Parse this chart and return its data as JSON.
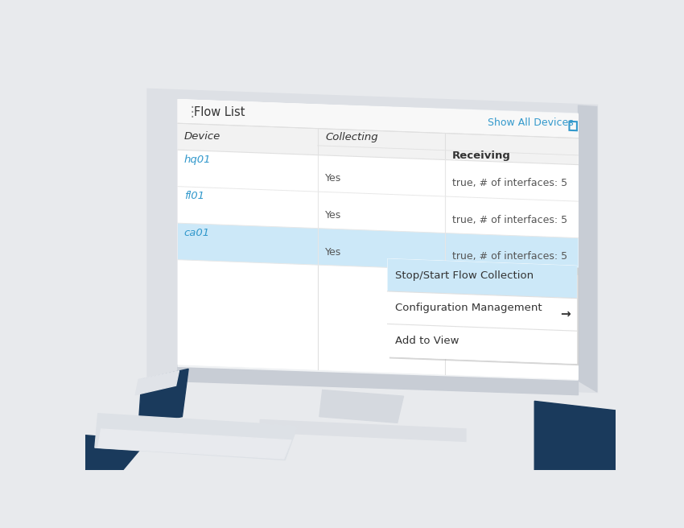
{
  "title": "Flow List",
  "show_all_devices_label": "Show All Devices",
  "col_headers": [
    "Device",
    "Collecting",
    "Receiving"
  ],
  "rows": [
    {
      "device": "hq01",
      "collecting": "Yes",
      "receiving": "true, # of interfaces: 5"
    },
    {
      "device": "fl01",
      "collecting": "Yes",
      "receiving": "true, # of interfaces: 5"
    },
    {
      "device": "ca01",
      "collecting": "Yes",
      "receiving": "true, # of interfaces: 5"
    }
  ],
  "context_menu": [
    "Stop/Start Flow Collection",
    "Configuration Management",
    "Add to View"
  ],
  "colors": {
    "background": "#e8eaed",
    "monitor_outer": "#dde0e5",
    "monitor_inner": "#f0f2f4",
    "panel_bg": "#ffffff",
    "panel_header_bg": "#f8f8f8",
    "table_header_bg": "#f2f2f2",
    "col_header_line": "#e0e0e0",
    "row_normal_bg": "#ffffff",
    "row_highlight_bg": "#cce8f8",
    "context_menu_bg": "#ffffff",
    "context_menu_highlight": "#cce8f8",
    "device_link_color": "#3399cc",
    "header_text": "#333333",
    "normal_text": "#555555",
    "title_color": "#333333",
    "show_all_color": "#3399cc",
    "dots_color": "#888888",
    "arrow_color": "#333333",
    "monitor_bezel": "#c8cdd5",
    "monitor_shadow": "#b0b5bc",
    "dark_navy": "#1a3a5c",
    "stand_light": "#e2e5ea",
    "keyboard_top": "#d8dce2",
    "keyboard_face": "#e5e8ec",
    "row_border": "#e8e8e8"
  }
}
